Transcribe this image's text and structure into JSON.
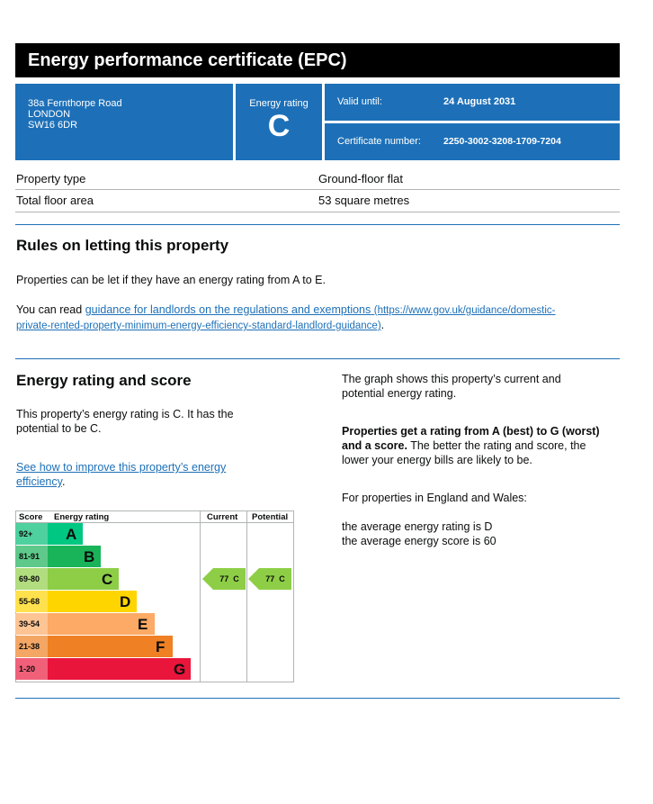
{
  "header": {
    "title": "Energy performance certificate (EPC)"
  },
  "address": {
    "line1": "38a Fernthorpe Road",
    "line2": "LONDON",
    "line3": "SW16 6DR"
  },
  "energy_rating_box": {
    "label": "Energy rating",
    "rating": "C"
  },
  "valid": {
    "label": "Valid until:",
    "value": "24 August 2031"
  },
  "certificate": {
    "label": "Certificate number:",
    "value": "2250-3002-3208-1709-7204"
  },
  "property": {
    "type_label": "Property type",
    "type_value": "Ground-floor flat",
    "area_label": "Total floor area",
    "area_value": "53 square metres"
  },
  "letting": {
    "heading": "Rules on letting this property",
    "para1": "Properties can be let if they have an energy rating from A to E.",
    "para2_prefix": "You can read ",
    "link_text": "guidance for landlords on the regulations and exemptions",
    "link_url_line1": "(https://www.gov.uk/guidance/domestic-",
    "link_url_line2": "private-rented-property-minimum-energy-efficiency-standard-landlord-guidance)",
    "para2_suffix": "."
  },
  "score_section": {
    "heading": "Energy rating and score",
    "para1_line1": "This property’s energy rating is C. It has the",
    "para1_line2": "potential to be C.",
    "link_line1": "See how to improve this property’s energy",
    "link_line2": "efficiency",
    "link_suffix": ".",
    "right_p1_line1": "The graph shows this property’s current and",
    "right_p1_line2": "potential energy rating.",
    "right_p2_bold1": "Properties get a rating from A (best) to G (worst)",
    "right_p2_bold2": "and a score.",
    "right_p2_rest2": " The better the rating and score, the",
    "right_p2_line3": "lower your energy bills are likely to be.",
    "right_p3": "For properties in England and Wales:",
    "right_p4_line1": "the average energy rating is D",
    "right_p4_line2": "the average energy score is 60"
  },
  "chart_data": {
    "type": "table",
    "headers": {
      "score": "Score",
      "rating": "Energy rating",
      "current": "Current",
      "potential": "Potential"
    },
    "bands": [
      {
        "score": "92+",
        "letter": "A",
        "color": "#00c781",
        "score_bg": "#4fd19f"
      },
      {
        "score": "81-91",
        "letter": "B",
        "color": "#19b459",
        "score_bg": "#5ec98a"
      },
      {
        "score": "69-80",
        "letter": "C",
        "color": "#8dce46",
        "score_bg": "#b1dd7f"
      },
      {
        "score": "55-68",
        "letter": "D",
        "color": "#ffd500",
        "score_bg": "#ffe14d"
      },
      {
        "score": "39-54",
        "letter": "E",
        "color": "#fcaa65",
        "score_bg": "#fdc494"
      },
      {
        "score": "21-38",
        "letter": "F",
        "color": "#ef8023",
        "score_bg": "#f4a665"
      },
      {
        "score": "1-20",
        "letter": "G",
        "color": "#e9153b",
        "score_bg": "#f06079"
      }
    ],
    "current": {
      "score": 77,
      "rating": "C",
      "label": "77  C",
      "color": "#8dce46"
    },
    "potential": {
      "score": 77,
      "rating": "C",
      "label": "77  C",
      "color": "#8dce46"
    }
  }
}
